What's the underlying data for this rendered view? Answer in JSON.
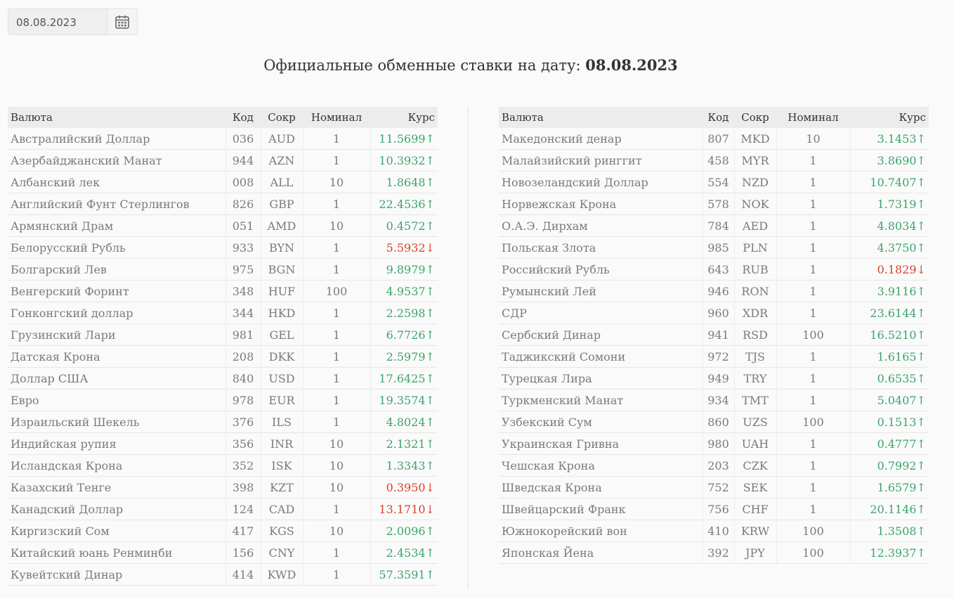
{
  "date_input": "08.08.2023",
  "heading": {
    "text": "Официальные обменные ставки на дату:",
    "date": "08.08.2023"
  },
  "colors": {
    "↑": "#3ca46c",
    "↓": "#d8412c"
  },
  "tables": [
    {
      "headers": [
        "Валюта",
        "Код",
        "Сокр",
        "Номинал",
        "Курс"
      ],
      "rows": [
        [
          "Австралийский Доллар",
          "036",
          "AUD",
          "1",
          "11.5699",
          "↑"
        ],
        [
          "Азербайджанский Манат",
          "944",
          "AZN",
          "1",
          "10.3932",
          "↑"
        ],
        [
          "Албанский лек",
          "008",
          "ALL",
          "10",
          "1.8648",
          "↑"
        ],
        [
          "Английский Фунт Стерлингов",
          "826",
          "GBP",
          "1",
          "22.4536",
          "↑"
        ],
        [
          "Армянский Драм",
          "051",
          "AMD",
          "10",
          "0.4572",
          "↑"
        ],
        [
          "Белорусский Рубль",
          "933",
          "BYN",
          "1",
          "5.5932",
          "↓"
        ],
        [
          "Болгарский Лев",
          "975",
          "BGN",
          "1",
          "9.8979",
          "↑"
        ],
        [
          "Венгерский Форинт",
          "348",
          "HUF",
          "100",
          "4.9537",
          "↑"
        ],
        [
          "Гонконгский доллар",
          "344",
          "HKD",
          "1",
          "2.2598",
          "↑"
        ],
        [
          "Грузинский Лари",
          "981",
          "GEL",
          "1",
          "6.7726",
          "↑"
        ],
        [
          "Датская Крона",
          "208",
          "DKK",
          "1",
          "2.5979",
          "↑"
        ],
        [
          "Доллар США",
          "840",
          "USD",
          "1",
          "17.6425",
          "↑"
        ],
        [
          "Евро",
          "978",
          "EUR",
          "1",
          "19.3574",
          "↑"
        ],
        [
          "Израильский Шекель",
          "376",
          "ILS",
          "1",
          "4.8024",
          "↑"
        ],
        [
          "Индийская рупия",
          "356",
          "INR",
          "10",
          "2.1321",
          "↑"
        ],
        [
          "Исландская Крона",
          "352",
          "ISK",
          "10",
          "1.3343",
          "↑"
        ],
        [
          "Казахский Тенге",
          "398",
          "KZT",
          "10",
          "0.3950",
          "↓"
        ],
        [
          "Канадский Доллар",
          "124",
          "CAD",
          "1",
          "13.1710",
          "↓"
        ],
        [
          "Киргизский Сом",
          "417",
          "KGS",
          "10",
          "2.0096",
          "↑"
        ],
        [
          "Китайский юань Ренминби",
          "156",
          "CNY",
          "1",
          "2.4534",
          "↑"
        ],
        [
          "Кувейтский Динар",
          "414",
          "KWD",
          "1",
          "57.3591",
          "↑"
        ]
      ]
    },
    {
      "headers": [
        "Валюта",
        "Код",
        "Сокр",
        "Номинал",
        "Курс"
      ],
      "rows": [
        [
          "Македонский денар",
          "807",
          "MKD",
          "10",
          "3.1453",
          "↑"
        ],
        [
          "Малайзийский ринггит",
          "458",
          "MYR",
          "1",
          "3.8690",
          "↑"
        ],
        [
          "Новозеландский Доллар",
          "554",
          "NZD",
          "1",
          "10.7407",
          "↑"
        ],
        [
          "Норвежская Крона",
          "578",
          "NOK",
          "1",
          "1.7319",
          "↑"
        ],
        [
          "О.А.Э. Дирхам",
          "784",
          "AED",
          "1",
          "4.8034",
          "↑"
        ],
        [
          "Польская Злота",
          "985",
          "PLN",
          "1",
          "4.3750",
          "↑"
        ],
        [
          "Российский Рубль",
          "643",
          "RUB",
          "1",
          "0.1829",
          "↓"
        ],
        [
          "Румынский Лей",
          "946",
          "RON",
          "1",
          "3.9116",
          "↑"
        ],
        [
          "СДР",
          "960",
          "XDR",
          "1",
          "23.6144",
          "↑"
        ],
        [
          "Сербский Динар",
          "941",
          "RSD",
          "100",
          "16.5210",
          "↑"
        ],
        [
          "Таджикский Сомони",
          "972",
          "TJS",
          "1",
          "1.6165",
          "↑"
        ],
        [
          "Турецкая Лира",
          "949",
          "TRY",
          "1",
          "0.6535",
          "↑"
        ],
        [
          "Туркменский Манат",
          "934",
          "TMT",
          "1",
          "5.0407",
          "↑"
        ],
        [
          "Узбекский Сум",
          "860",
          "UZS",
          "100",
          "0.1513",
          "↑"
        ],
        [
          "Украинская Гривна",
          "980",
          "UAH",
          "1",
          "0.4777",
          "↑"
        ],
        [
          "Чешская Крона",
          "203",
          "CZK",
          "1",
          "0.7992",
          "↑"
        ],
        [
          "Шведская Крона",
          "752",
          "SEK",
          "1",
          "1.6579",
          "↑"
        ],
        [
          "Швейцарский Франк",
          "756",
          "CHF",
          "1",
          "20.1146",
          "↑"
        ],
        [
          "Южнокорейский вон",
          "410",
          "KRW",
          "100",
          "1.3508",
          "↑"
        ],
        [
          "Японская Йена",
          "392",
          "JPY",
          "100",
          "12.3937",
          "↑"
        ]
      ]
    }
  ]
}
